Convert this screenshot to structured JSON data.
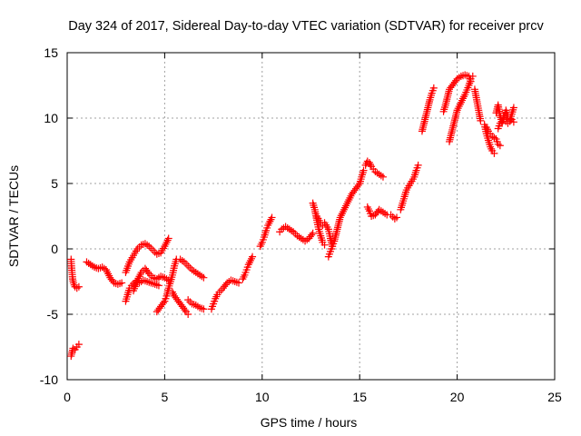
{
  "chart_data": {
    "type": "scatter",
    "title": "Day 324 of 2017, Sidereal Day-to-day VTEC variation (SDTVAR) for receiver prcv",
    "xlabel": "GPS time / hours",
    "ylabel": "SDTVAR / TECUs",
    "xlim": [
      0,
      25
    ],
    "ylim": [
      -10,
      15
    ],
    "xticks": [
      "0",
      "5",
      "10",
      "15",
      "20",
      "25"
    ],
    "yticks": [
      "-10",
      "-5",
      "0",
      "5",
      "10",
      "15"
    ],
    "grid": true,
    "marker": "+",
    "color": "#ff0000",
    "series": [
      {
        "points": [
          [
            0.2,
            -8.2
          ],
          [
            0.25,
            -7.9
          ],
          [
            0.3,
            -7.6
          ],
          [
            0.4,
            -7.7
          ],
          [
            0.5,
            -7.5
          ],
          [
            0.6,
            -7.3
          ]
        ]
      },
      {
        "points": [
          [
            0.2,
            -0.8
          ],
          [
            0.22,
            -1.3
          ],
          [
            0.25,
            -1.8
          ],
          [
            0.28,
            -2.3
          ],
          [
            0.32,
            -2.6
          ],
          [
            0.4,
            -2.9
          ],
          [
            0.5,
            -3.0
          ],
          [
            0.6,
            -2.9
          ]
        ]
      },
      {
        "points": [
          [
            1.0,
            -1.0
          ],
          [
            1.2,
            -1.2
          ],
          [
            1.4,
            -1.4
          ],
          [
            1.6,
            -1.5
          ],
          [
            1.8,
            -1.4
          ],
          [
            2.0,
            -1.6
          ],
          [
            2.2,
            -2.2
          ],
          [
            2.4,
            -2.6
          ],
          [
            2.6,
            -2.7
          ],
          [
            2.8,
            -2.6
          ]
        ]
      },
      {
        "points": [
          [
            3.0,
            -4.0
          ],
          [
            3.1,
            -3.5
          ],
          [
            3.2,
            -3.0
          ],
          [
            3.3,
            -2.8
          ],
          [
            3.5,
            -2.5
          ],
          [
            3.7,
            -2.6
          ],
          [
            3.9,
            -2.4
          ],
          [
            4.1,
            -2.5
          ],
          [
            4.3,
            -2.6
          ],
          [
            4.5,
            -2.7
          ],
          [
            4.7,
            -2.8
          ]
        ]
      },
      {
        "points": [
          [
            3.0,
            -1.8
          ],
          [
            3.2,
            -1.0
          ],
          [
            3.4,
            -0.5
          ],
          [
            3.6,
            0.0
          ],
          [
            3.8,
            0.3
          ],
          [
            4.0,
            0.4
          ],
          [
            4.2,
            0.2
          ],
          [
            4.4,
            -0.1
          ],
          [
            4.6,
            -0.4
          ],
          [
            4.8,
            -0.3
          ],
          [
            5.0,
            0.2
          ],
          [
            5.2,
            0.8
          ]
        ]
      },
      {
        "points": [
          [
            3.4,
            -3.2
          ],
          [
            3.6,
            -2.4
          ],
          [
            3.8,
            -1.8
          ],
          [
            4.0,
            -1.5
          ],
          [
            4.2,
            -1.9
          ],
          [
            4.4,
            -2.2
          ],
          [
            4.6,
            -2.3
          ],
          [
            4.8,
            -2.1
          ],
          [
            5.0,
            -2.2
          ],
          [
            5.2,
            -2.4
          ]
        ]
      },
      {
        "points": [
          [
            4.6,
            -4.8
          ],
          [
            4.8,
            -4.4
          ],
          [
            5.0,
            -4.0
          ],
          [
            5.1,
            -3.6
          ],
          [
            5.2,
            -3.0
          ],
          [
            5.4,
            -2.0
          ],
          [
            5.5,
            -1.3
          ],
          [
            5.6,
            -0.8
          ],
          [
            5.8,
            -0.8
          ],
          [
            6.0,
            -1.0
          ],
          [
            6.2,
            -1.3
          ],
          [
            6.4,
            -1.6
          ],
          [
            6.6,
            -1.8
          ],
          [
            6.8,
            -2.0
          ],
          [
            7.0,
            -2.2
          ]
        ]
      },
      {
        "points": [
          [
            5.4,
            -3.3
          ],
          [
            5.5,
            -3.6
          ],
          [
            5.7,
            -4.0
          ],
          [
            5.9,
            -4.4
          ],
          [
            6.1,
            -4.8
          ],
          [
            6.2,
            -5.0
          ]
        ]
      },
      {
        "points": [
          [
            6.2,
            -3.9
          ],
          [
            6.4,
            -4.2
          ],
          [
            6.6,
            -4.3
          ],
          [
            6.8,
            -4.5
          ],
          [
            7.0,
            -4.6
          ]
        ]
      },
      {
        "points": [
          [
            7.4,
            -4.6
          ],
          [
            7.5,
            -4.2
          ],
          [
            7.6,
            -3.8
          ],
          [
            7.7,
            -3.5
          ],
          [
            7.8,
            -3.3
          ],
          [
            8.0,
            -3.0
          ],
          [
            8.2,
            -2.6
          ],
          [
            8.4,
            -2.4
          ],
          [
            8.6,
            -2.5
          ],
          [
            8.8,
            -2.6
          ]
        ]
      },
      {
        "points": [
          [
            9.0,
            -2.3
          ],
          [
            9.1,
            -2.0
          ],
          [
            9.2,
            -1.6
          ],
          [
            9.3,
            -1.2
          ],
          [
            9.4,
            -0.9
          ],
          [
            9.5,
            -0.6
          ]
        ]
      },
      {
        "points": [
          [
            9.9,
            0.2
          ],
          [
            10.0,
            0.5
          ],
          [
            10.1,
            0.9
          ],
          [
            10.2,
            1.4
          ],
          [
            10.3,
            1.8
          ],
          [
            10.4,
            2.1
          ],
          [
            10.5,
            2.4
          ]
        ]
      },
      {
        "points": [
          [
            10.9,
            1.3
          ],
          [
            11.0,
            1.5
          ],
          [
            11.2,
            1.7
          ],
          [
            11.4,
            1.5
          ],
          [
            11.6,
            1.3
          ],
          [
            11.8,
            1.0
          ],
          [
            12.0,
            0.8
          ],
          [
            12.2,
            0.6
          ],
          [
            12.4,
            0.8
          ],
          [
            12.6,
            1.2
          ]
        ]
      },
      {
        "points": [
          [
            12.6,
            3.5
          ],
          [
            12.7,
            3.0
          ],
          [
            12.8,
            2.2
          ],
          [
            12.9,
            1.5
          ],
          [
            13.0,
            1.0
          ],
          [
            13.1,
            0.5
          ],
          [
            13.2,
            0.3
          ]
        ]
      },
      {
        "points": [
          [
            12.8,
            2.5
          ],
          [
            13.0,
            2.0
          ],
          [
            13.1,
            1.8
          ],
          [
            13.2,
            2.0
          ],
          [
            13.4,
            1.5
          ],
          [
            13.5,
            0.8
          ],
          [
            13.6,
            0.2
          ]
        ]
      },
      {
        "points": [
          [
            13.4,
            -0.6
          ],
          [
            13.5,
            -0.2
          ],
          [
            13.6,
            0.2
          ],
          [
            13.7,
            0.6
          ],
          [
            13.8,
            1.2
          ],
          [
            13.9,
            1.8
          ],
          [
            14.0,
            2.4
          ],
          [
            14.2,
            3.0
          ],
          [
            14.4,
            3.6
          ],
          [
            14.6,
            4.2
          ],
          [
            14.8,
            4.6
          ],
          [
            15.0,
            5.0
          ],
          [
            15.1,
            5.5
          ],
          [
            15.2,
            6.0
          ]
        ]
      },
      {
        "points": [
          [
            15.3,
            6.4
          ],
          [
            15.4,
            6.7
          ],
          [
            15.5,
            6.6
          ],
          [
            15.6,
            6.3
          ],
          [
            15.7,
            6.1
          ],
          [
            15.8,
            5.9
          ],
          [
            16.0,
            5.7
          ],
          [
            16.2,
            5.5
          ]
        ]
      },
      {
        "points": [
          [
            15.4,
            3.2
          ],
          [
            15.5,
            2.9
          ],
          [
            15.6,
            2.5
          ],
          [
            15.8,
            2.6
          ],
          [
            16.0,
            3.0
          ],
          [
            16.2,
            2.8
          ],
          [
            16.4,
            2.6
          ]
        ]
      },
      {
        "points": [
          [
            16.6,
            2.6
          ],
          [
            16.8,
            2.3
          ],
          [
            16.9,
            2.4
          ]
        ]
      },
      {
        "points": [
          [
            17.1,
            3.0
          ],
          [
            17.2,
            3.5
          ],
          [
            17.3,
            4.0
          ],
          [
            17.4,
            4.5
          ],
          [
            17.6,
            5.0
          ],
          [
            17.8,
            5.5
          ],
          [
            17.9,
            6.0
          ],
          [
            18.0,
            6.4
          ]
        ]
      },
      {
        "points": [
          [
            18.2,
            9.0
          ],
          [
            18.3,
            9.6
          ],
          [
            18.4,
            10.2
          ],
          [
            18.5,
            10.8
          ],
          [
            18.6,
            11.4
          ],
          [
            18.7,
            11.9
          ],
          [
            18.8,
            12.3
          ]
        ]
      },
      {
        "points": [
          [
            19.3,
            10.5
          ],
          [
            19.4,
            11.0
          ],
          [
            19.5,
            11.6
          ],
          [
            19.6,
            12.2
          ],
          [
            19.8,
            12.6
          ],
          [
            20.0,
            13.0
          ],
          [
            20.2,
            13.2
          ],
          [
            20.4,
            13.3
          ],
          [
            20.6,
            13.2
          ],
          [
            20.7,
            12.8
          ]
        ]
      },
      {
        "points": [
          [
            19.6,
            8.2
          ],
          [
            19.7,
            8.8
          ],
          [
            19.8,
            9.4
          ],
          [
            19.9,
            10.0
          ],
          [
            20.0,
            10.6
          ],
          [
            20.2,
            11.2
          ],
          [
            20.4,
            11.8
          ],
          [
            20.6,
            12.5
          ],
          [
            20.7,
            13.0
          ],
          [
            20.8,
            13.2
          ]
        ]
      },
      {
        "points": [
          [
            20.9,
            12.2
          ],
          [
            21.0,
            11.4
          ],
          [
            21.1,
            10.6
          ],
          [
            21.2,
            9.8
          ]
        ]
      },
      {
        "points": [
          [
            21.4,
            9.5
          ],
          [
            21.5,
            8.8
          ],
          [
            21.6,
            8.3
          ],
          [
            21.7,
            7.8
          ],
          [
            21.8,
            7.5
          ],
          [
            21.9,
            7.3
          ]
        ]
      },
      {
        "points": [
          [
            21.5,
            9.3
          ],
          [
            21.6,
            9.0
          ],
          [
            21.7,
            8.8
          ],
          [
            21.8,
            8.6
          ],
          [
            22.0,
            8.4
          ],
          [
            22.1,
            8.0
          ],
          [
            22.2,
            7.9
          ]
        ]
      },
      {
        "points": [
          [
            22.0,
            10.4
          ],
          [
            22.1,
            11.0
          ],
          [
            22.2,
            10.2
          ],
          [
            22.3,
            9.6
          ],
          [
            22.4,
            10.2
          ],
          [
            22.5,
            10.6
          ],
          [
            22.6,
            10.0
          ],
          [
            22.7,
            9.8
          ],
          [
            22.8,
            10.3
          ],
          [
            22.9,
            10.8
          ]
        ]
      },
      {
        "points": [
          [
            22.1,
            9.2
          ],
          [
            22.2,
            9.6
          ],
          [
            22.4,
            9.9
          ],
          [
            22.6,
            9.6
          ],
          [
            22.8,
            9.9
          ],
          [
            22.9,
            9.7
          ]
        ]
      }
    ]
  }
}
